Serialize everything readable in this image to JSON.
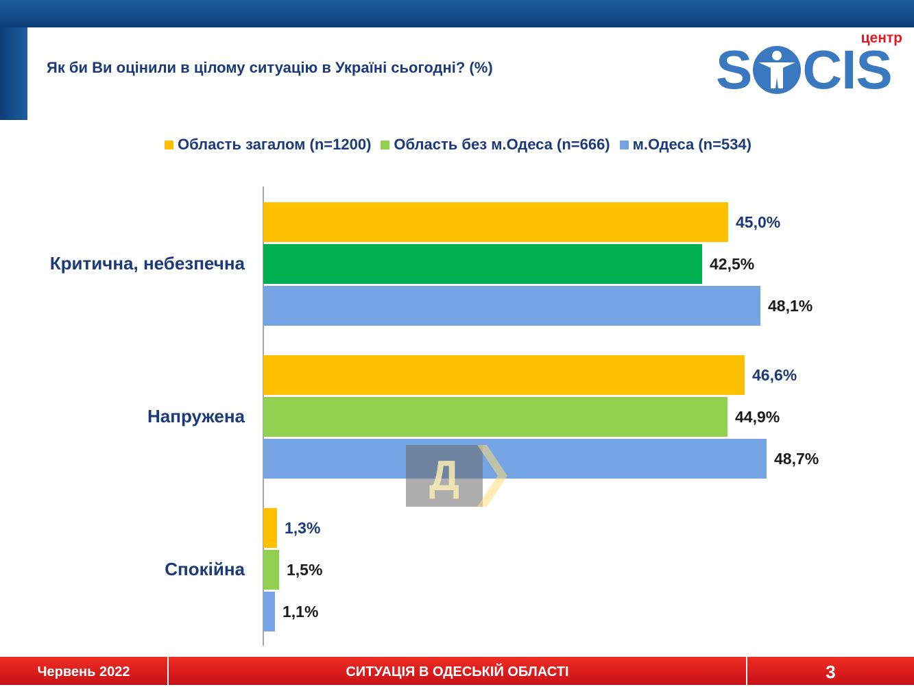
{
  "header": {
    "question": "Як би Ви оцінили в цілому ситуацію в Україні сьогодні? (%)"
  },
  "logo": {
    "small_text": "центр",
    "word_left": "S",
    "word_right": "CIS"
  },
  "footer": {
    "date": "Червень 2022",
    "title": "СИТУАЦІЯ В ОДЕСЬКІЙ ОБЛАСТІ",
    "page_number": "3"
  },
  "watermark": {
    "letter": "Д"
  },
  "chart_data": {
    "type": "bar",
    "orientation": "horizontal",
    "categories": [
      "Критична, небезпечна",
      "Напружена",
      "Спокійна"
    ],
    "series": [
      {
        "name": "Область загалом (n=1200)",
        "values": [
          45.0,
          46.6,
          1.3
        ],
        "labels": [
          "45,0%",
          "46,6%",
          "1,3%"
        ]
      },
      {
        "name": "Область без м.Одеса (n=666)",
        "values": [
          42.5,
          44.9,
          1.5
        ],
        "labels": [
          "42,5%",
          "44,9%",
          "1,5%"
        ]
      },
      {
        "name": "м.Одеса (n=534)",
        "values": [
          48.1,
          48.7,
          1.1
        ],
        "labels": [
          "48,1%",
          "48,7%",
          "1,1%"
        ]
      }
    ],
    "colors": {
      "series_0": "#ffc000",
      "series_1_default": "#92d050",
      "series_1_first": "#00b050",
      "series_2": "#74a4e4",
      "label_series_0": "#1a3a7a",
      "label_series_1": "#1a1a1a",
      "label_series_2": "#1a1a1a"
    },
    "legend_position": "top",
    "grid": false
  }
}
